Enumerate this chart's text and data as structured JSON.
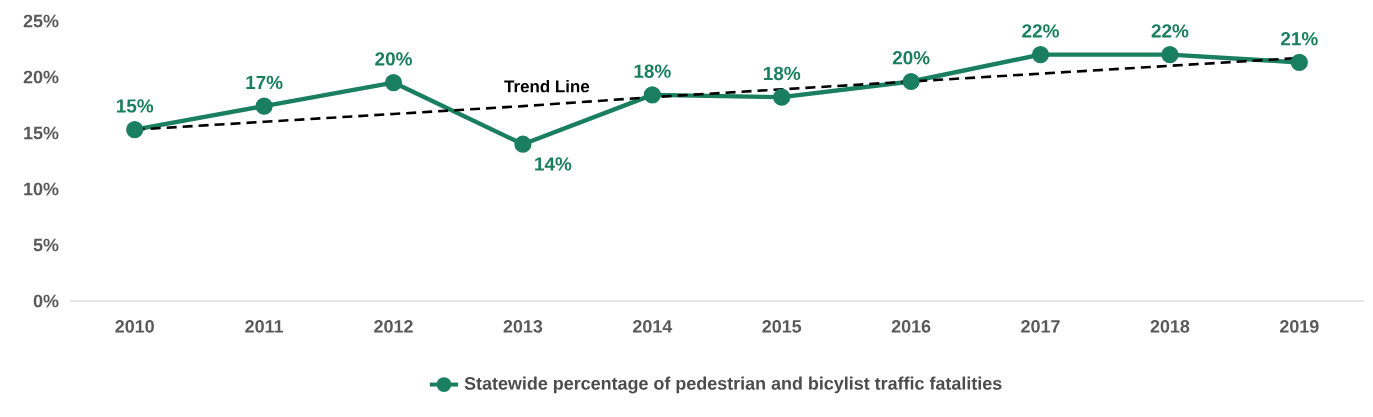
{
  "chart_data": {
    "type": "line",
    "categories": [
      "2010",
      "2011",
      "2012",
      "2013",
      "2014",
      "2015",
      "2016",
      "2017",
      "2018",
      "2019"
    ],
    "series": [
      {
        "name": "Statewide percentage of pedestrian and bicylist traffic fatalities",
        "color": "#1a7f5e",
        "marker": "circle",
        "line_style": "solid",
        "values": [
          15.3,
          17.4,
          19.5,
          14.0,
          18.4,
          18.2,
          19.6,
          22.0,
          22.0,
          21.3
        ],
        "value_labels": [
          "15%",
          "17%",
          "20%",
          "14%",
          "18%",
          "18%",
          "20%",
          "22%",
          "22%",
          "21%"
        ]
      },
      {
        "type": "line",
        "color": "#000000",
        "marker": "none",
        "line_style": "dashed",
        "values": [
          15.3,
          16.0,
          16.7,
          17.4,
          18.2,
          18.9,
          19.6,
          20.3,
          21.0,
          21.7
        ]
      }
    ],
    "annotations": [
      "Trend Line"
    ],
    "ylim": [
      0,
      25
    ],
    "yticks": [
      {
        "value": 0,
        "label": "0%"
      },
      {
        "value": 5,
        "label": "5%"
      },
      {
        "value": 10,
        "label": "10%"
      },
      {
        "value": 15,
        "label": "15%"
      },
      {
        "value": 20,
        "label": "20%"
      },
      {
        "value": 25,
        "label": "25%"
      }
    ],
    "grid": false,
    "legend": "bottom"
  }
}
